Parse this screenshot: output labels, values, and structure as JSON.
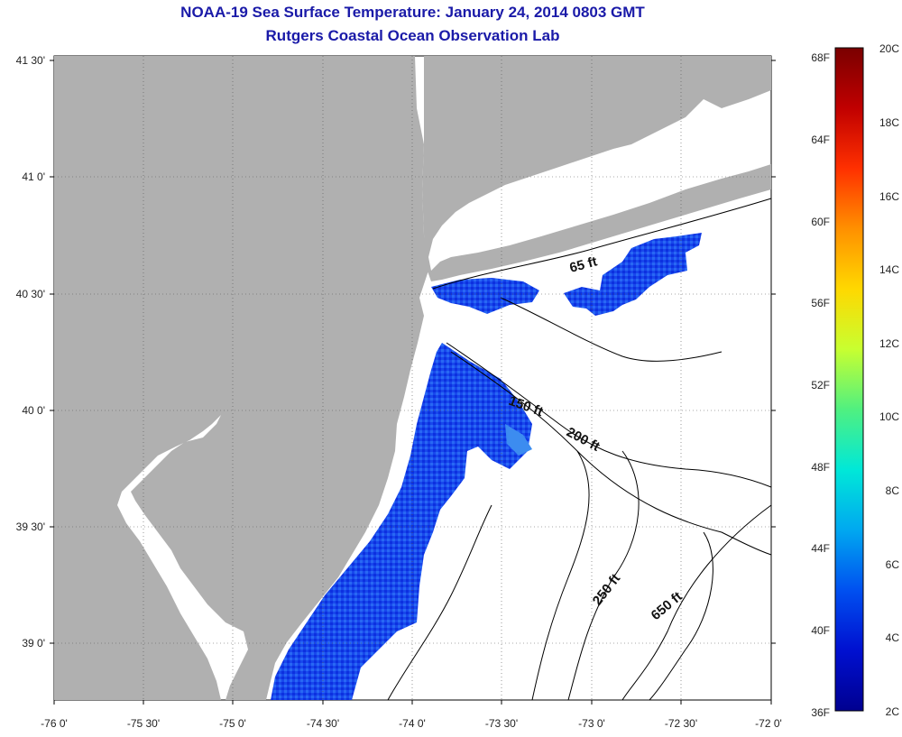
{
  "header": {
    "title": "NOAA-19 Sea Surface Temperature:  January 24, 2014 0803 GMT",
    "subtitle": "Rutgers Coastal Ocean Observation Lab"
  },
  "axes": {
    "lon_ticks": [
      "-76 0'",
      "-75 30'",
      "-75 0'",
      "-74 30'",
      "-74 0'",
      "-73 30'",
      "-73 0'",
      "-72 30'",
      "-72 0'"
    ],
    "lat_ticks": [
      "41 30'",
      "41 0'",
      "40 30'",
      "40 0'",
      "39 30'",
      "39 0'"
    ]
  },
  "contour_labels": [
    "65 ft",
    "150 ft",
    "200 ft",
    "250 ft",
    "650 ft"
  ],
  "colorbar": {
    "fahrenheit": [
      "68F",
      "64F",
      "60F",
      "56F",
      "52F",
      "48F",
      "44F",
      "40F",
      "36F"
    ],
    "celsius": [
      "20C",
      "18C",
      "16C",
      "14C",
      "12C",
      "10C",
      "8C",
      "6C",
      "4C",
      "2C"
    ],
    "colors": [
      "#7a0000",
      "#c00000",
      "#ff3000",
      "#ff9000",
      "#ffd800",
      "#c8ff30",
      "#50f080",
      "#00e8d8",
      "#00a8f0",
      "#0050f0",
      "#0010d0",
      "#000090"
    ]
  },
  "colors": {
    "land": "#b0b0b0",
    "water": "#ffffff",
    "sst_cold": "#1040e8",
    "sst_mid": "#2060f0",
    "title": "#1a1aa8"
  }
}
